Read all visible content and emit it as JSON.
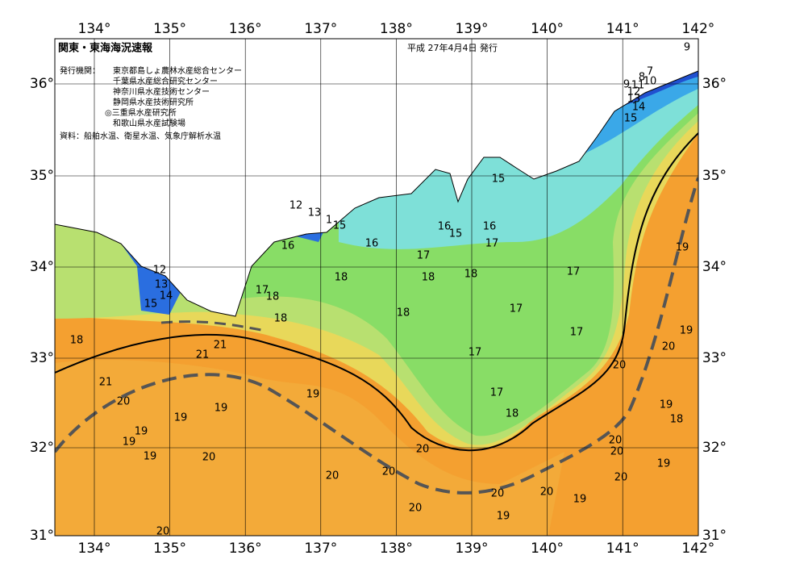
{
  "header": {
    "title": "関東・東海海況速報",
    "date": "平成 27年4月4日 発行",
    "issuer_label": "発行機関：",
    "issuers": [
      "東京都島しょ農林水産総合センター",
      "千葉県水産総合研究センター",
      "神奈川県水産技術センター",
      "静岡県水産技術研究所",
      "◎三重県水産研究所",
      "和歌山県水産試験場"
    ],
    "source": "資料：船舶水温、衛星水温、気象庁解析水温"
  },
  "lon_labels": [
    "134°",
    "135°",
    "136°",
    "137°",
    "138°",
    "139°",
    "140°",
    "141°",
    "142°"
  ],
  "lat_labels": [
    "36°",
    "35°",
    "34°",
    "33°",
    "32°",
    "31°"
  ],
  "contour_labels": [
    "9",
    "8",
    "7",
    "10",
    "9",
    "11",
    "12",
    "13",
    "14",
    "15",
    "15",
    "12",
    "13",
    "1",
    "15",
    "16",
    "16",
    "16",
    "15",
    "16",
    "17",
    "17",
    "18",
    "18",
    "18",
    "17",
    "12",
    "13",
    "14",
    "15",
    "17",
    "18",
    "18",
    "18",
    "17",
    "17",
    "17",
    "18",
    "21",
    "21",
    "21",
    "20",
    "20",
    "19",
    "19",
    "19",
    "17",
    "18",
    "20",
    "19",
    "19",
    "19",
    "19",
    "20",
    "20",
    "19",
    "18",
    "19",
    "20",
    "20",
    "20",
    "20",
    "19",
    "20",
    "20",
    "19",
    "20",
    "20",
    "19",
    "20"
  ]
}
